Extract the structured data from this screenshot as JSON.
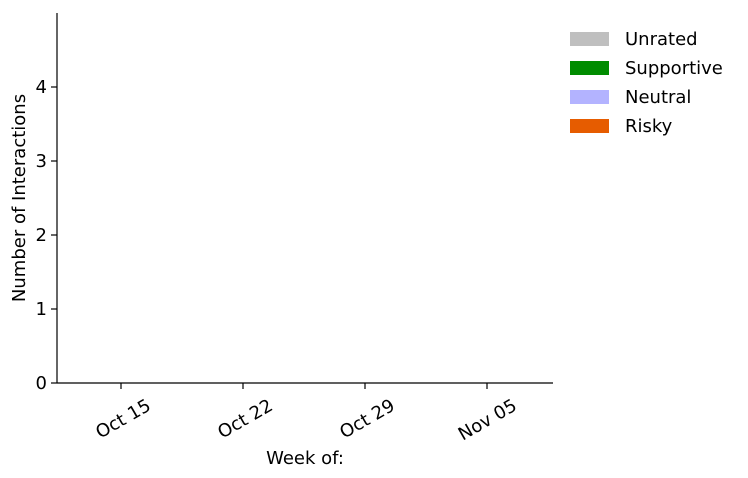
{
  "chart_data": {
    "type": "bar",
    "stacked": true,
    "title": "",
    "xlabel": "Week of:",
    "ylabel": "Number of Interactions",
    "categories": [
      "Oct 15",
      "Oct 22",
      "Oct 29",
      "Nov 05"
    ],
    "ylim": [
      0,
      5
    ],
    "yticks": [
      "0",
      "1",
      "2",
      "3",
      "4"
    ],
    "grid": false,
    "legend_position": "right, outside plot, top",
    "series": [
      {
        "name": "Unrated",
        "color": "#bfbfbf",
        "values": [
          0,
          0,
          0,
          0
        ]
      },
      {
        "name": "Supportive",
        "color": "#008c00",
        "values": [
          0,
          0,
          0,
          0
        ]
      },
      {
        "name": "Neutral",
        "color": "#b3b3ff",
        "values": [
          0,
          0,
          0,
          0
        ]
      },
      {
        "name": "Risky",
        "color": "#e65c00",
        "values": [
          0,
          0,
          0,
          0
        ]
      }
    ]
  }
}
